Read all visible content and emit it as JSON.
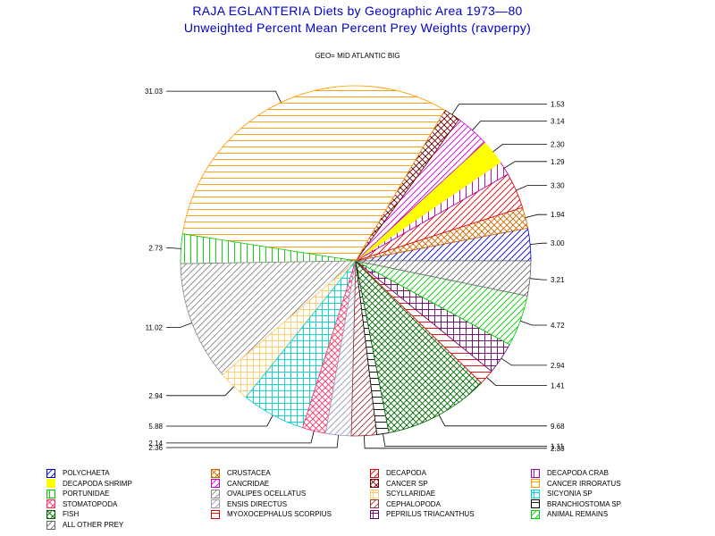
{
  "header": {
    "title": "RAJA EGLANTERIA Diets by Geographic Area 1973—80",
    "subtitle": "Unweighted Percent Mean Percent Prey  Weights (ravperpy)",
    "geo": "GEO= MID ATLANTIC BIG"
  },
  "chart_data": {
    "type": "pie",
    "title": "RAJA EGLANTERIA Diets by Geographic Area 1973—80",
    "subtitle": "Unweighted Percent Mean Percent Prey  Weights (ravperpy)",
    "slices": [
      {
        "label": "3.00",
        "category": "POLYCHAETA",
        "value": 3.0,
        "color": "#0000cc",
        "pattern": "diag"
      },
      {
        "label": "1.94",
        "category": "CRUSTACEA",
        "value": 1.94,
        "color": "#cc6600",
        "pattern": "cross"
      },
      {
        "label": "3.30",
        "category": "DECAPODA",
        "value": 3.3,
        "color": "#dd0000",
        "pattern": "diag"
      },
      {
        "label": "1.29",
        "category": "DECAPODA CRAB",
        "value": 1.29,
        "color": "#aa00aa",
        "pattern": "vert"
      },
      {
        "label": "2.30",
        "category": "DECAPODA SHRIMP",
        "value": 2.3,
        "color": "#ffff00",
        "pattern": "solid"
      },
      {
        "label": "3.14",
        "category": "CANCRIDAE",
        "value": 3.14,
        "color": "#cc00cc",
        "pattern": "diag"
      },
      {
        "label": "1.53",
        "category": "CANCER SP",
        "value": 1.53,
        "color": "#660000",
        "pattern": "cross"
      },
      {
        "label": "31.03",
        "category": "CANCER IRRORATUS",
        "value": 31.03,
        "color": "#ff9900",
        "pattern": "horiz"
      },
      {
        "label": "2.73",
        "category": "PORTUNIDAE",
        "value": 2.73,
        "color": "#00cc00",
        "pattern": "vert"
      },
      {
        "label": "11.02",
        "category": "OVALIPES OCELLATUS",
        "value": 11.02,
        "color": "#888888",
        "pattern": "diag"
      },
      {
        "label": "2.94",
        "category": "SCYLLARIDAE",
        "value": 2.94,
        "color": "#ffcc66",
        "pattern": "grid"
      },
      {
        "label": "5.88",
        "category": "SICYONIA SP",
        "value": 5.88,
        "color": "#00cccc",
        "pattern": "grid"
      },
      {
        "label": "2.14",
        "category": "STOMATOPODA",
        "value": 2.14,
        "color": "#ff3366",
        "pattern": "cross"
      },
      {
        "label": "2.36",
        "category": "ENSIS DIRECTUS",
        "value": 2.36,
        "color": "#9999bb",
        "pattern": "diag"
      },
      {
        "label": "2.33",
        "category": "CEPHALOPODA",
        "value": 2.33,
        "color": "#993333",
        "pattern": "diag"
      },
      {
        "label": "1.11",
        "category": "BRANCHIOSTOMA SP",
        "value": 1.11,
        "color": "#000000",
        "pattern": "horiz"
      },
      {
        "label": "9.68",
        "category": "FISH",
        "value": 9.68,
        "color": "#006600",
        "pattern": "cross"
      },
      {
        "label": "1.41",
        "category": "MYOXOCEPHALUS SCORPIUS",
        "value": 1.41,
        "color": "#dd0000",
        "pattern": "horiz"
      },
      {
        "label": "2.94",
        "category": "PEPRILUS TRIACANTHUS",
        "value": 2.94,
        "color": "#660066",
        "pattern": "grid"
      },
      {
        "label": "4.72",
        "category": "ANIMAL REMAINS",
        "value": 4.72,
        "color": "#00cc00",
        "pattern": "diag"
      },
      {
        "label": "3.21",
        "category": "ALL OTHER PREY",
        "value": 3.21,
        "color": "#666666",
        "pattern": "diag"
      }
    ],
    "legend": [
      [
        "POLYCHAETA",
        "CRUSTACEA",
        "DECAPODA",
        "DECAPODA CRAB"
      ],
      [
        "DECAPODA SHRIMP",
        "CANCRIDAE",
        "CANCER SP",
        "CANCER IRRORATUS"
      ],
      [
        "PORTUNIDAE",
        "OVALIPES OCELLATUS",
        "SCYLLARIDAE",
        "SICYONIA SP"
      ],
      [
        "STOMATOPODA",
        "ENSIS DIRECTUS",
        "CEPHALOPODA",
        "BRANCHIOSTOMA SP"
      ],
      [
        "FISH",
        "MYOXOCEPHALUS SCORPIUS",
        "PEPRILUS TRIACANTHUS",
        "ANIMAL REMAINS"
      ],
      [
        "ALL OTHER PREY"
      ]
    ],
    "legend_placement": "bottom"
  }
}
